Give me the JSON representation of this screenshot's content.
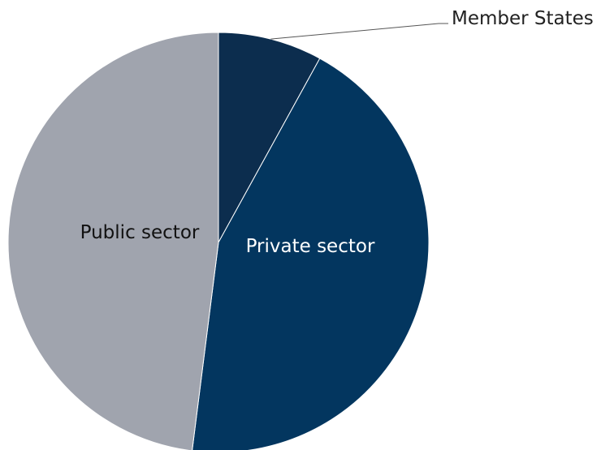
{
  "chart_data": {
    "type": "pie",
    "title": "",
    "slices": [
      {
        "name": "Member States",
        "value": 8,
        "color": "#0c2d4e",
        "label_color": "#222222"
      },
      {
        "name": "Private sector",
        "value": 44,
        "color": "#03365f",
        "label_color": "#ffffff"
      },
      {
        "name": "Public sector",
        "value": 48,
        "color": "#a0a4ae",
        "label_color": "#111111"
      }
    ],
    "legend": "none"
  }
}
